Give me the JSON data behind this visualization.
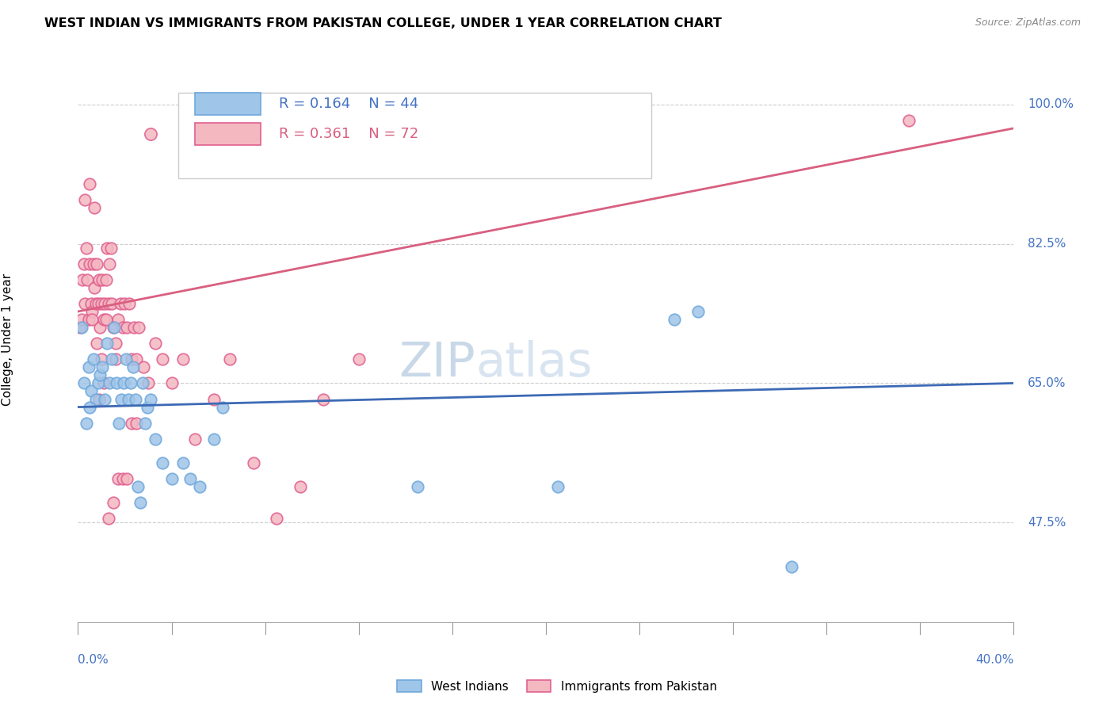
{
  "title": "WEST INDIAN VS IMMIGRANTS FROM PAKISTAN COLLEGE, UNDER 1 YEAR CORRELATION CHART",
  "source": "Source: ZipAtlas.com",
  "ylabel": "College, Under 1 year",
  "yticks": [
    47.5,
    65.0,
    82.5,
    100.0
  ],
  "ytick_labels": [
    "47.5%",
    "65.0%",
    "82.5%",
    "100.0%"
  ],
  "xmin": 0.0,
  "xmax": 40.0,
  "ymin": 35.0,
  "ymax": 106.0,
  "west_indian_color": "#9fc5e8",
  "pakistan_color": "#f4b8c1",
  "west_indian_edge": "#6fa8dc",
  "pakistan_edge": "#e06090",
  "west_indian_line_color": "#3d6ab5",
  "pakistan_line_color": "#d95f80",
  "wi_line_y0": 62.0,
  "wi_line_y1": 65.0,
  "pk_line_y0": 74.0,
  "pk_line_y1": 97.0,
  "west_indian_x": [
    0.15,
    0.25,
    0.35,
    0.45,
    0.55,
    0.65,
    0.75,
    0.85,
    0.95,
    1.05,
    1.15,
    1.25,
    1.35,
    1.45,
    1.55,
    1.65,
    1.75,
    1.85,
    1.95,
    2.05,
    2.15,
    2.25,
    2.35,
    2.45,
    2.55,
    2.65,
    2.75,
    2.85,
    2.95,
    3.1,
    3.3,
    3.6,
    4.0,
    4.5,
    4.8,
    5.2,
    5.8,
    6.2,
    25.5,
    26.5,
    14.5,
    20.5,
    30.5,
    0.5
  ],
  "west_indian_y": [
    72,
    65,
    60,
    67,
    64,
    68,
    63,
    65,
    66,
    67,
    63,
    70,
    65,
    68,
    72,
    65,
    60,
    63,
    65,
    68,
    63,
    65,
    67,
    63,
    52,
    50,
    65,
    60,
    62,
    63,
    58,
    55,
    53,
    55,
    53,
    52,
    58,
    62,
    73,
    74,
    52,
    52,
    42,
    62
  ],
  "pakistan_x": [
    0.1,
    0.15,
    0.2,
    0.25,
    0.3,
    0.35,
    0.4,
    0.45,
    0.5,
    0.55,
    0.6,
    0.65,
    0.7,
    0.75,
    0.8,
    0.85,
    0.9,
    0.95,
    1.0,
    1.05,
    1.1,
    1.15,
    1.2,
    1.25,
    1.3,
    1.35,
    1.4,
    1.45,
    1.5,
    1.6,
    1.7,
    1.8,
    1.9,
    2.0,
    2.1,
    2.2,
    2.3,
    2.4,
    2.5,
    2.6,
    2.8,
    3.0,
    3.3,
    3.6,
    4.0,
    4.5,
    5.0,
    5.8,
    6.5,
    7.5,
    8.5,
    9.5,
    10.5,
    12.0,
    35.5,
    0.3,
    0.5,
    0.7,
    0.9,
    1.1,
    1.3,
    1.5,
    1.7,
    1.9,
    2.1,
    2.3,
    0.6,
    0.8,
    1.0,
    1.2,
    1.6,
    2.5
  ],
  "pakistan_y": [
    72,
    73,
    78,
    80,
    75,
    82,
    78,
    73,
    80,
    75,
    74,
    80,
    77,
    75,
    80,
    75,
    78,
    72,
    75,
    78,
    73,
    75,
    78,
    82,
    75,
    80,
    82,
    75,
    72,
    68,
    73,
    75,
    72,
    75,
    72,
    75,
    68,
    72,
    68,
    72,
    67,
    65,
    70,
    68,
    65,
    68,
    58,
    63,
    68,
    55,
    48,
    52,
    63,
    68,
    98,
    88,
    90,
    87,
    63,
    65,
    48,
    50,
    53,
    53,
    53,
    60,
    73,
    70,
    68,
    73,
    70,
    60
  ]
}
